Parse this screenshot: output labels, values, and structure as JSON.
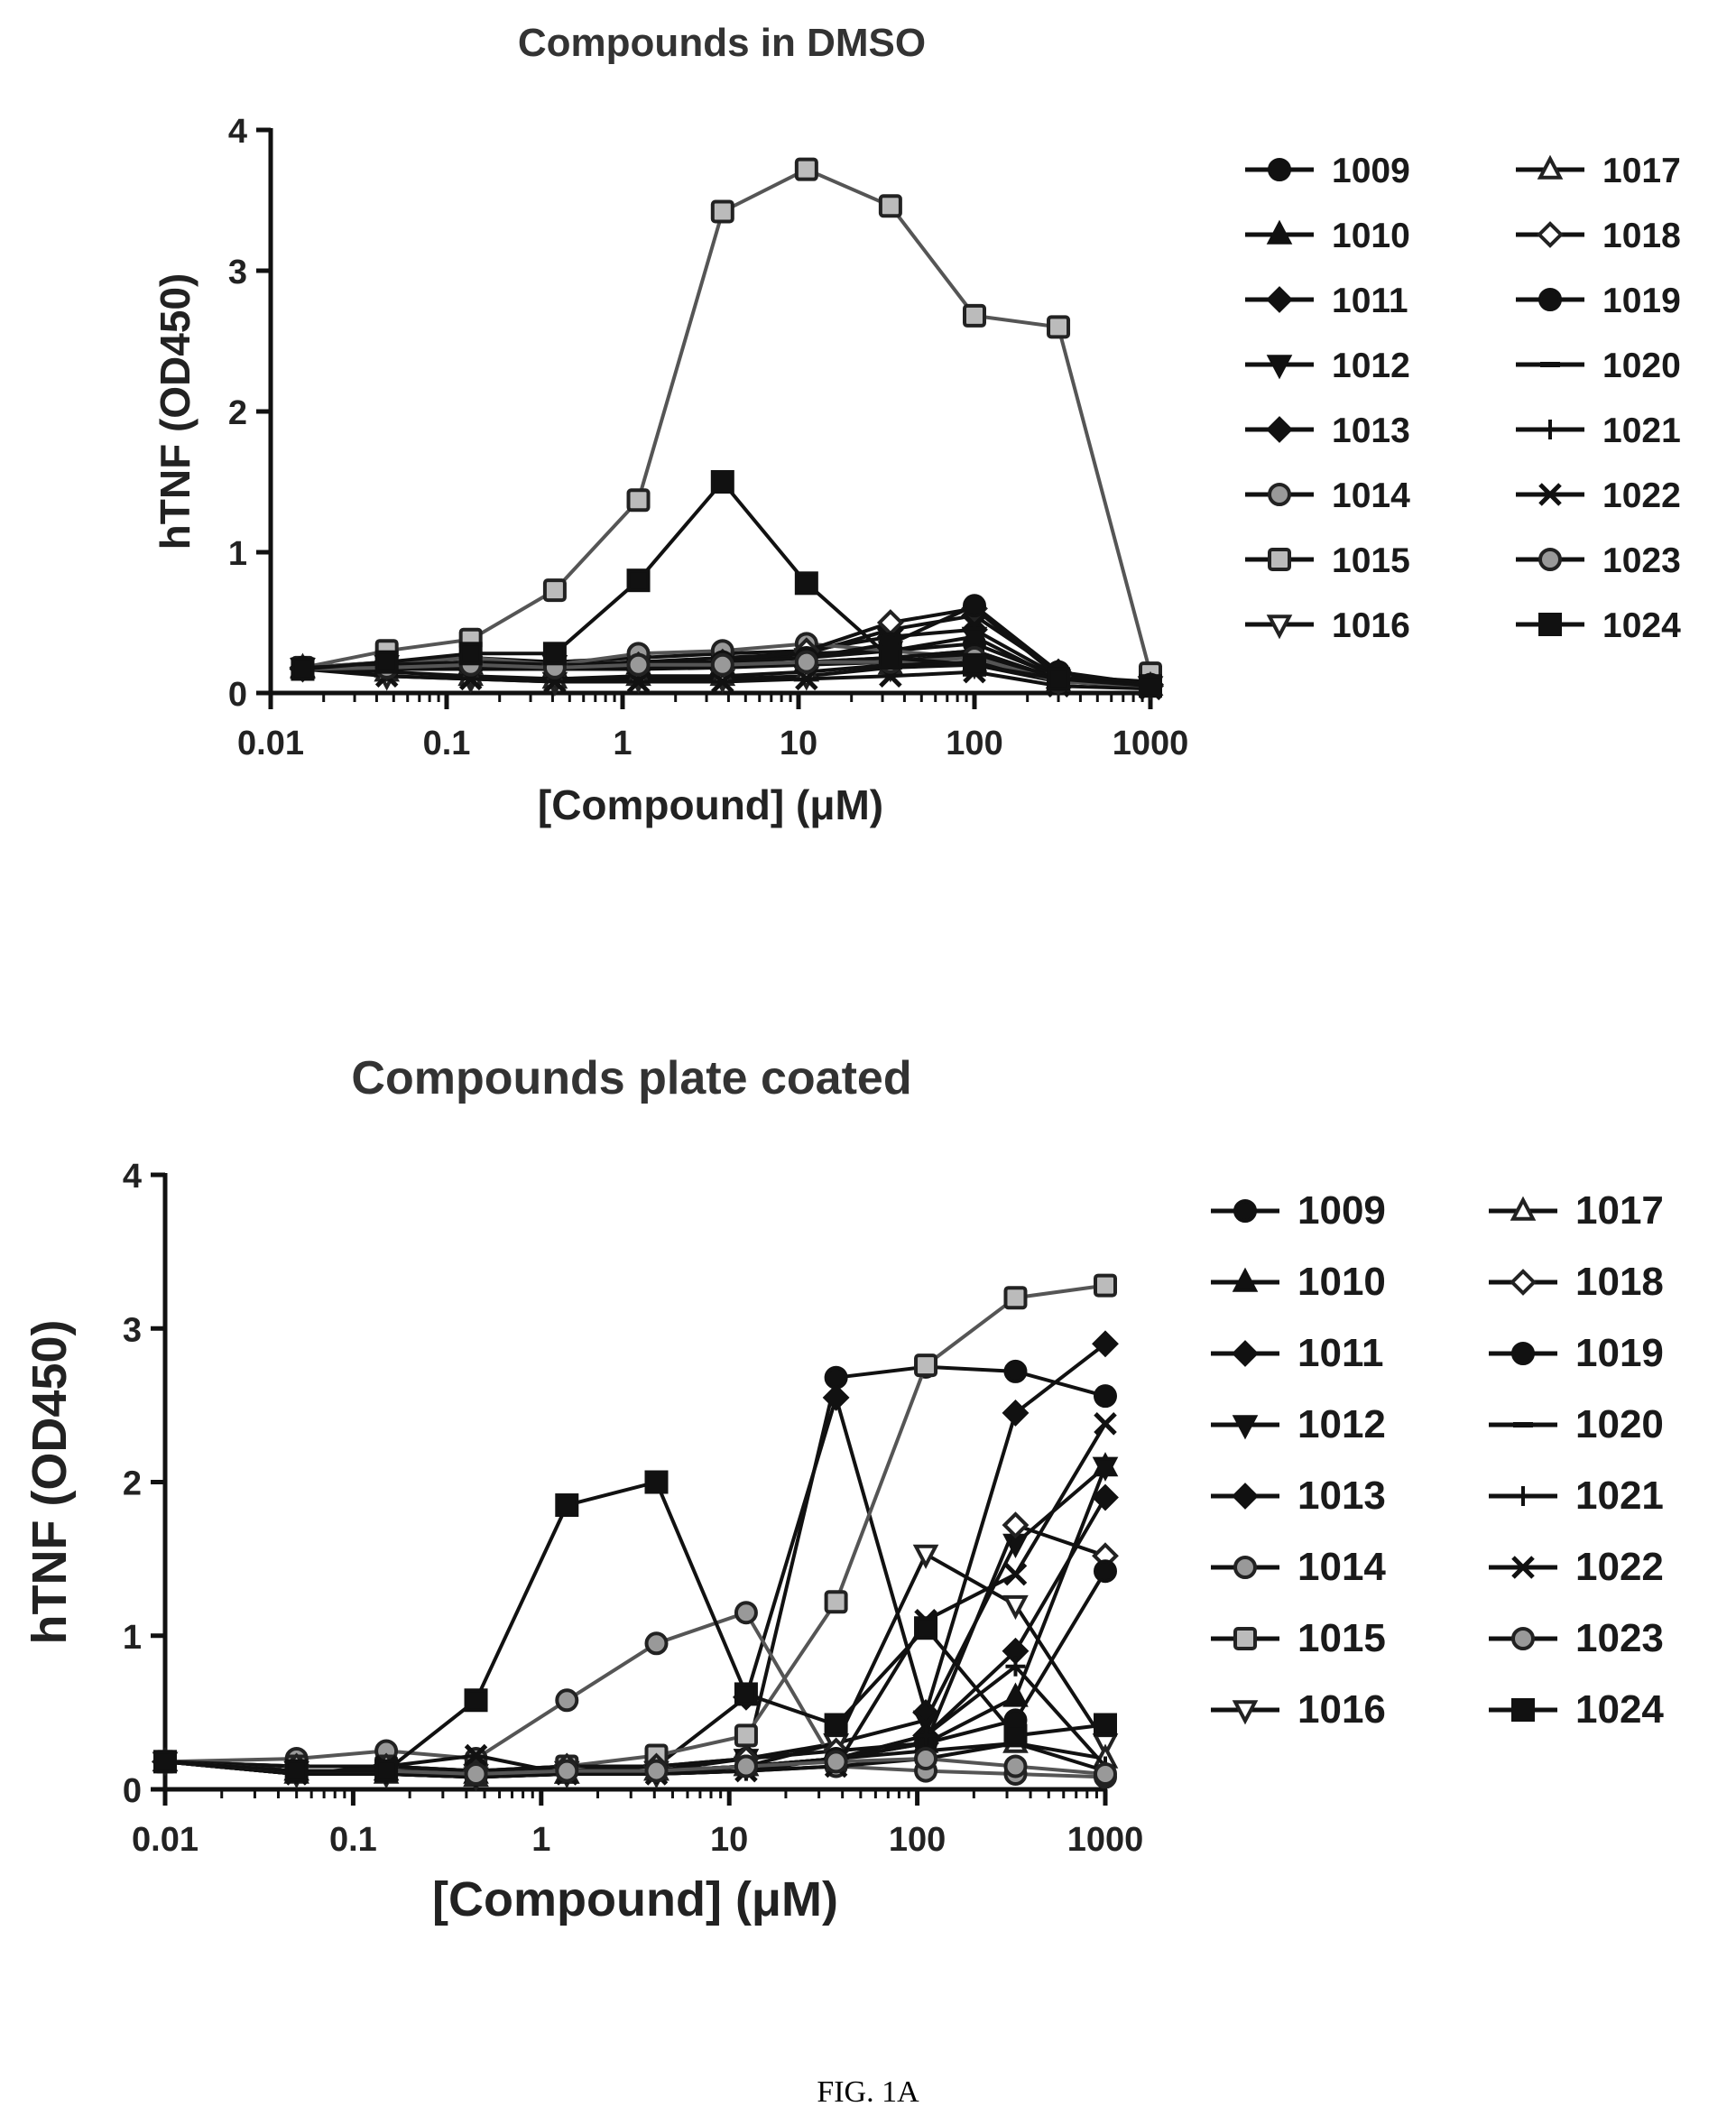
{
  "caption": "FIG. 1A",
  "chart_data": [
    {
      "type": "line",
      "title": "Compounds in DMSO",
      "xlabel": "[Compound] (μM)",
      "ylabel": "hTNF (OD450)",
      "xscale": "log",
      "xlim": [
        0.01,
        1000
      ],
      "ylim": [
        0,
        4
      ],
      "xticks": [
        "0.01",
        "0.1",
        "1",
        "10",
        "100",
        "1000"
      ],
      "yticks": [
        "0",
        "1",
        "2",
        "3",
        "4"
      ],
      "legend_position": "right",
      "x": [
        0.0152,
        0.0457,
        0.137,
        0.412,
        1.23,
        3.7,
        11.1,
        33.3,
        100,
        300,
        1000
      ],
      "series": [
        {
          "name": "1009",
          "marker": "circle-filled",
          "values": [
            0.18,
            0.2,
            0.22,
            0.2,
            0.22,
            0.25,
            0.28,
            0.3,
            0.35,
            0.12,
            0.08
          ]
        },
        {
          "name": "1010",
          "marker": "triangle-filled",
          "values": [
            0.17,
            0.18,
            0.2,
            0.18,
            0.2,
            0.2,
            0.22,
            0.25,
            0.3,
            0.1,
            0.05
          ]
        },
        {
          "name": "1011",
          "marker": "diamond-filled",
          "values": [
            0.18,
            0.22,
            0.25,
            0.22,
            0.25,
            0.28,
            0.3,
            0.4,
            0.45,
            0.12,
            0.06
          ]
        },
        {
          "name": "1012",
          "marker": "triangle-down-filled",
          "values": [
            0.18,
            0.2,
            0.18,
            0.2,
            0.2,
            0.22,
            0.25,
            0.3,
            0.4,
            0.1,
            0.05
          ]
        },
        {
          "name": "1013",
          "marker": "diamond-filled",
          "values": [
            0.17,
            0.18,
            0.2,
            0.2,
            0.22,
            0.22,
            0.28,
            0.45,
            0.55,
            0.15,
            0.05
          ]
        },
        {
          "name": "1014",
          "marker": "circle-gray",
          "values": [
            0.18,
            0.22,
            0.25,
            0.2,
            0.28,
            0.3,
            0.35,
            0.3,
            0.25,
            0.1,
            0.05
          ]
        },
        {
          "name": "1015",
          "marker": "square-gray",
          "values": [
            0.18,
            0.3,
            0.38,
            0.73,
            1.37,
            3.42,
            3.72,
            3.46,
            2.68,
            2.6,
            0.14
          ]
        },
        {
          "name": "1016",
          "marker": "triangle-down-open",
          "values": [
            0.18,
            0.12,
            0.1,
            0.08,
            0.1,
            0.1,
            0.12,
            0.18,
            0.2,
            0.08,
            0.05
          ]
        },
        {
          "name": "1017",
          "marker": "triangle-open",
          "values": [
            0.18,
            0.15,
            0.12,
            0.1,
            0.12,
            0.12,
            0.15,
            0.2,
            0.22,
            0.08,
            0.05
          ]
        },
        {
          "name": "1018",
          "marker": "diamond-open",
          "values": [
            0.18,
            0.2,
            0.22,
            0.2,
            0.2,
            0.22,
            0.3,
            0.5,
            0.6,
            0.12,
            0.05
          ]
        },
        {
          "name": "1019",
          "marker": "circle-filled",
          "values": [
            0.18,
            0.2,
            0.2,
            0.18,
            0.2,
            0.22,
            0.25,
            0.35,
            0.62,
            0.15,
            0.06
          ]
        },
        {
          "name": "1020",
          "marker": "dash",
          "values": [
            0.17,
            0.18,
            0.18,
            0.18,
            0.18,
            0.2,
            0.22,
            0.25,
            0.3,
            0.1,
            0.05
          ]
        },
        {
          "name": "1021",
          "marker": "plus",
          "values": [
            0.17,
            0.17,
            0.17,
            0.17,
            0.17,
            0.18,
            0.2,
            0.22,
            0.28,
            0.1,
            0.05
          ]
        },
        {
          "name": "1022",
          "marker": "x",
          "values": [
            0.17,
            0.12,
            0.1,
            0.08,
            0.08,
            0.08,
            0.1,
            0.12,
            0.15,
            0.05,
            0.03
          ]
        },
        {
          "name": "1023",
          "marker": "circle-gray",
          "values": [
            0.17,
            0.18,
            0.2,
            0.18,
            0.2,
            0.2,
            0.22,
            0.22,
            0.25,
            0.08,
            0.05
          ]
        },
        {
          "name": "1024",
          "marker": "square-filled",
          "values": [
            0.17,
            0.22,
            0.28,
            0.28,
            0.8,
            1.5,
            0.78,
            0.25,
            0.2,
            0.1,
            0.05
          ]
        }
      ]
    },
    {
      "type": "line",
      "title": "Compounds plate coated",
      "xlabel": "[Compound] (μM)",
      "ylabel": "hTNF (OD450)",
      "xscale": "log",
      "xlim": [
        0.01,
        1000
      ],
      "ylim": [
        0,
        4
      ],
      "xticks": [
        "0.01",
        "0.1",
        "1",
        "10",
        "100",
        "1000"
      ],
      "yticks": [
        "0",
        "1",
        "2",
        "3",
        "4"
      ],
      "legend_position": "right",
      "x": [
        0.01,
        0.05,
        0.15,
        0.45,
        1.37,
        4.1,
        12.3,
        37,
        111,
        333,
        1000
      ],
      "series": [
        {
          "name": "1009",
          "marker": "circle-filled",
          "values": [
            0.18,
            0.15,
            0.15,
            0.12,
            0.15,
            0.15,
            0.2,
            2.68,
            2.75,
            2.72,
            2.56
          ]
        },
        {
          "name": "1010",
          "marker": "triangle-filled",
          "values": [
            0.18,
            0.12,
            0.12,
            0.1,
            0.1,
            0.12,
            0.15,
            0.2,
            0.3,
            0.6,
            2.1
          ]
        },
        {
          "name": "1011",
          "marker": "diamond-filled",
          "values": [
            0.18,
            0.12,
            0.12,
            0.1,
            0.12,
            0.12,
            0.15,
            0.2,
            0.35,
            0.9,
            1.9
          ]
        },
        {
          "name": "1012",
          "marker": "triangle-down-filled",
          "values": [
            0.18,
            0.12,
            0.1,
            0.1,
            0.12,
            0.12,
            0.2,
            0.3,
            0.45,
            1.6,
            2.1
          ]
        },
        {
          "name": "1013",
          "marker": "diamond-filled",
          "values": [
            0.18,
            0.12,
            0.12,
            0.12,
            0.12,
            0.15,
            0.6,
            2.55,
            0.5,
            2.45,
            2.9
          ]
        },
        {
          "name": "1014",
          "marker": "circle-gray",
          "values": [
            0.18,
            0.2,
            0.25,
            0.2,
            0.58,
            0.95,
            1.15,
            0.15,
            0.12,
            0.1,
            0.08
          ]
        },
        {
          "name": "1015",
          "marker": "square-gray",
          "values": [
            0.18,
            0.15,
            0.15,
            0.12,
            0.15,
            0.22,
            0.35,
            1.22,
            2.76,
            3.2,
            3.28
          ]
        },
        {
          "name": "1016",
          "marker": "triangle-down-open",
          "values": [
            0.18,
            0.1,
            0.1,
            0.08,
            0.1,
            0.1,
            0.15,
            0.3,
            1.53,
            1.2,
            0.3
          ]
        },
        {
          "name": "1017",
          "marker": "triangle-open",
          "values": [
            0.18,
            0.1,
            0.1,
            0.08,
            0.1,
            0.12,
            0.15,
            0.2,
            0.25,
            0.3,
            0.2
          ]
        },
        {
          "name": "1018",
          "marker": "diamond-open",
          "values": [
            0.18,
            0.15,
            0.15,
            0.12,
            0.15,
            0.15,
            0.2,
            0.25,
            0.3,
            1.72,
            1.52
          ]
        },
        {
          "name": "1019",
          "marker": "circle-filled",
          "values": [
            0.18,
            0.12,
            0.12,
            0.1,
            0.12,
            0.12,
            0.15,
            0.2,
            0.3,
            0.45,
            1.42
          ]
        },
        {
          "name": "1020",
          "marker": "dash",
          "values": [
            0.18,
            0.1,
            0.1,
            0.08,
            0.1,
            0.1,
            0.12,
            0.15,
            0.2,
            0.3,
            0.12
          ]
        },
        {
          "name": "1021",
          "marker": "plus",
          "values": [
            0.18,
            0.1,
            0.1,
            0.08,
            0.1,
            0.1,
            0.12,
            0.2,
            0.35,
            0.8,
            0.15
          ]
        },
        {
          "name": "1022",
          "marker": "x",
          "values": [
            0.18,
            0.1,
            0.15,
            0.22,
            0.1,
            0.1,
            0.12,
            0.15,
            1.1,
            1.4,
            2.38
          ]
        },
        {
          "name": "1023",
          "marker": "circle-gray",
          "values": [
            0.18,
            0.12,
            0.12,
            0.1,
            0.12,
            0.12,
            0.15,
            0.18,
            0.2,
            0.15,
            0.1
          ]
        },
        {
          "name": "1024",
          "marker": "square-filled",
          "values": [
            0.18,
            0.12,
            0.12,
            0.58,
            1.85,
            2.0,
            0.62,
            0.42,
            1.05,
            0.35,
            0.42
          ]
        }
      ]
    }
  ]
}
